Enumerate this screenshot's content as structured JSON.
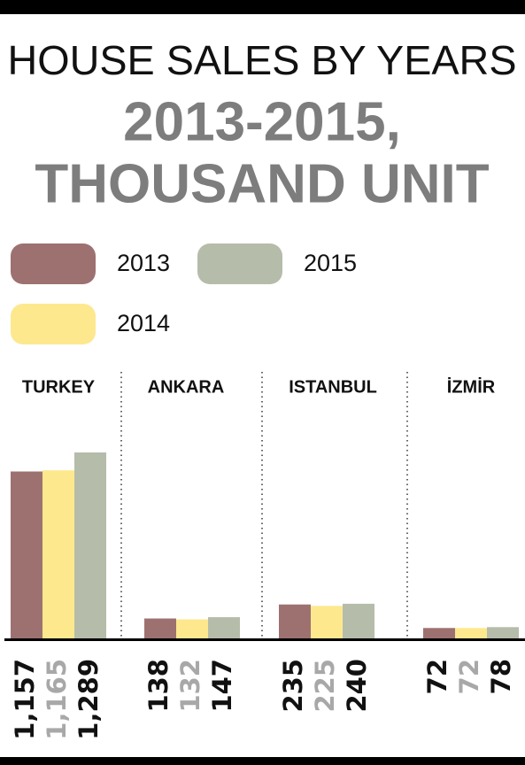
{
  "chart_data": {
    "type": "bar",
    "title": "HOUSE SALES BY YEARS",
    "subtitle": [
      "2013-2015,",
      "THOUSAND UNIT"
    ],
    "categories": [
      "TURKEY",
      "ANKARA",
      "ISTANBUL",
      "İZMİR"
    ],
    "series": [
      {
        "name": "2013",
        "color": "#9e7171",
        "label_color": "#111111",
        "values": [
          1157,
          138,
          235,
          72
        ],
        "value_labels": [
          "1,157",
          "138",
          "235",
          "72"
        ]
      },
      {
        "name": "2014",
        "color": "#fde88e",
        "label_color": "#a8a8a8",
        "values": [
          1165,
          132,
          225,
          72
        ],
        "value_labels": [
          "1,165",
          "132",
          "225",
          "72"
        ]
      },
      {
        "name": "2015",
        "color": "#b5bdaa",
        "label_color": "#111111",
        "values": [
          1289,
          147,
          240,
          78
        ],
        "value_labels": [
          "1,289",
          "147",
          "240",
          "78"
        ]
      }
    ]
  }
}
